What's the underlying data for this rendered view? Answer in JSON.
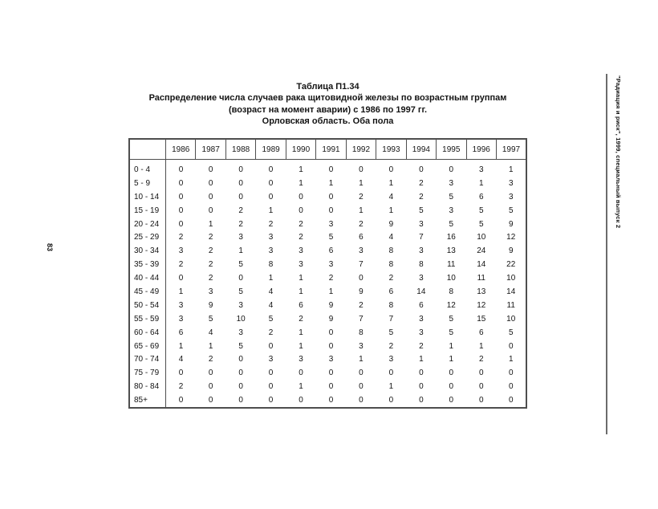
{
  "page": {
    "left_margin_page_number": "83",
    "right_margin_note": "\"Радиация и риск\", 1999, специальный выпуск 2"
  },
  "title": {
    "table_label": "Таблица П1.34",
    "line2": "Распределение числа случаев рака щитовидной железы по возрастным группам",
    "line3": "(возраст на момент аварии) с 1986 по 1997 гг.",
    "line4": "Орловская область. Оба пола"
  },
  "table": {
    "corner_header": "",
    "year_columns": [
      "1986",
      "1987",
      "1988",
      "1989",
      "1990",
      "1991",
      "1992",
      "1993",
      "1994",
      "1995",
      "1996",
      "1997"
    ],
    "rows": [
      {
        "age_group": "0 - 4",
        "values": [
          0,
          0,
          0,
          0,
          1,
          0,
          0,
          0,
          0,
          0,
          3,
          1
        ]
      },
      {
        "age_group": "5 - 9",
        "values": [
          0,
          0,
          0,
          0,
          1,
          1,
          1,
          1,
          2,
          3,
          1,
          3
        ]
      },
      {
        "age_group": "10 - 14",
        "values": [
          0,
          0,
          0,
          0,
          0,
          0,
          2,
          4,
          2,
          5,
          6,
          3
        ]
      },
      {
        "age_group": "15 - 19",
        "values": [
          0,
          0,
          2,
          1,
          0,
          0,
          1,
          1,
          5,
          3,
          5,
          5
        ]
      },
      {
        "age_group": "20 - 24",
        "values": [
          0,
          1,
          2,
          2,
          2,
          3,
          2,
          9,
          3,
          5,
          5,
          9
        ]
      },
      {
        "age_group": "25 - 29",
        "values": [
          2,
          2,
          3,
          3,
          2,
          5,
          6,
          4,
          7,
          16,
          10,
          12
        ]
      },
      {
        "age_group": "30 - 34",
        "values": [
          3,
          2,
          1,
          3,
          3,
          6,
          3,
          8,
          3,
          13,
          24,
          9
        ]
      },
      {
        "age_group": "35 - 39",
        "values": [
          2,
          2,
          5,
          8,
          3,
          3,
          7,
          8,
          8,
          11,
          14,
          22
        ]
      },
      {
        "age_group": "40 - 44",
        "values": [
          0,
          2,
          0,
          1,
          1,
          2,
          0,
          2,
          3,
          10,
          11,
          10
        ]
      },
      {
        "age_group": "45 - 49",
        "values": [
          1,
          3,
          5,
          4,
          1,
          1,
          9,
          6,
          14,
          8,
          13,
          14
        ]
      },
      {
        "age_group": "50 - 54",
        "values": [
          3,
          9,
          3,
          4,
          6,
          9,
          2,
          8,
          6,
          12,
          12,
          11
        ]
      },
      {
        "age_group": "55 - 59",
        "values": [
          3,
          5,
          10,
          5,
          2,
          9,
          7,
          7,
          3,
          5,
          15,
          10
        ]
      },
      {
        "age_group": "60 - 64",
        "values": [
          6,
          4,
          3,
          2,
          1,
          0,
          8,
          5,
          3,
          5,
          6,
          5
        ]
      },
      {
        "age_group": "65 - 69",
        "values": [
          1,
          1,
          5,
          0,
          1,
          0,
          3,
          2,
          2,
          1,
          1,
          0
        ]
      },
      {
        "age_group": "70 - 74",
        "values": [
          4,
          2,
          0,
          3,
          3,
          3,
          1,
          3,
          1,
          1,
          2,
          1
        ]
      },
      {
        "age_group": "75 - 79",
        "values": [
          0,
          0,
          0,
          0,
          0,
          0,
          0,
          0,
          0,
          0,
          0,
          0
        ]
      },
      {
        "age_group": "80 - 84",
        "values": [
          2,
          0,
          0,
          0,
          1,
          0,
          0,
          1,
          0,
          0,
          0,
          0
        ]
      },
      {
        "age_group": "85+",
        "values": [
          0,
          0,
          0,
          0,
          0,
          0,
          0,
          0,
          0,
          0,
          0,
          0
        ]
      }
    ]
  },
  "colors": {
    "background": "#ffffff",
    "text": "#141414",
    "table_border": "#4e4e4e",
    "margin_rule": "#6b6b6b"
  }
}
